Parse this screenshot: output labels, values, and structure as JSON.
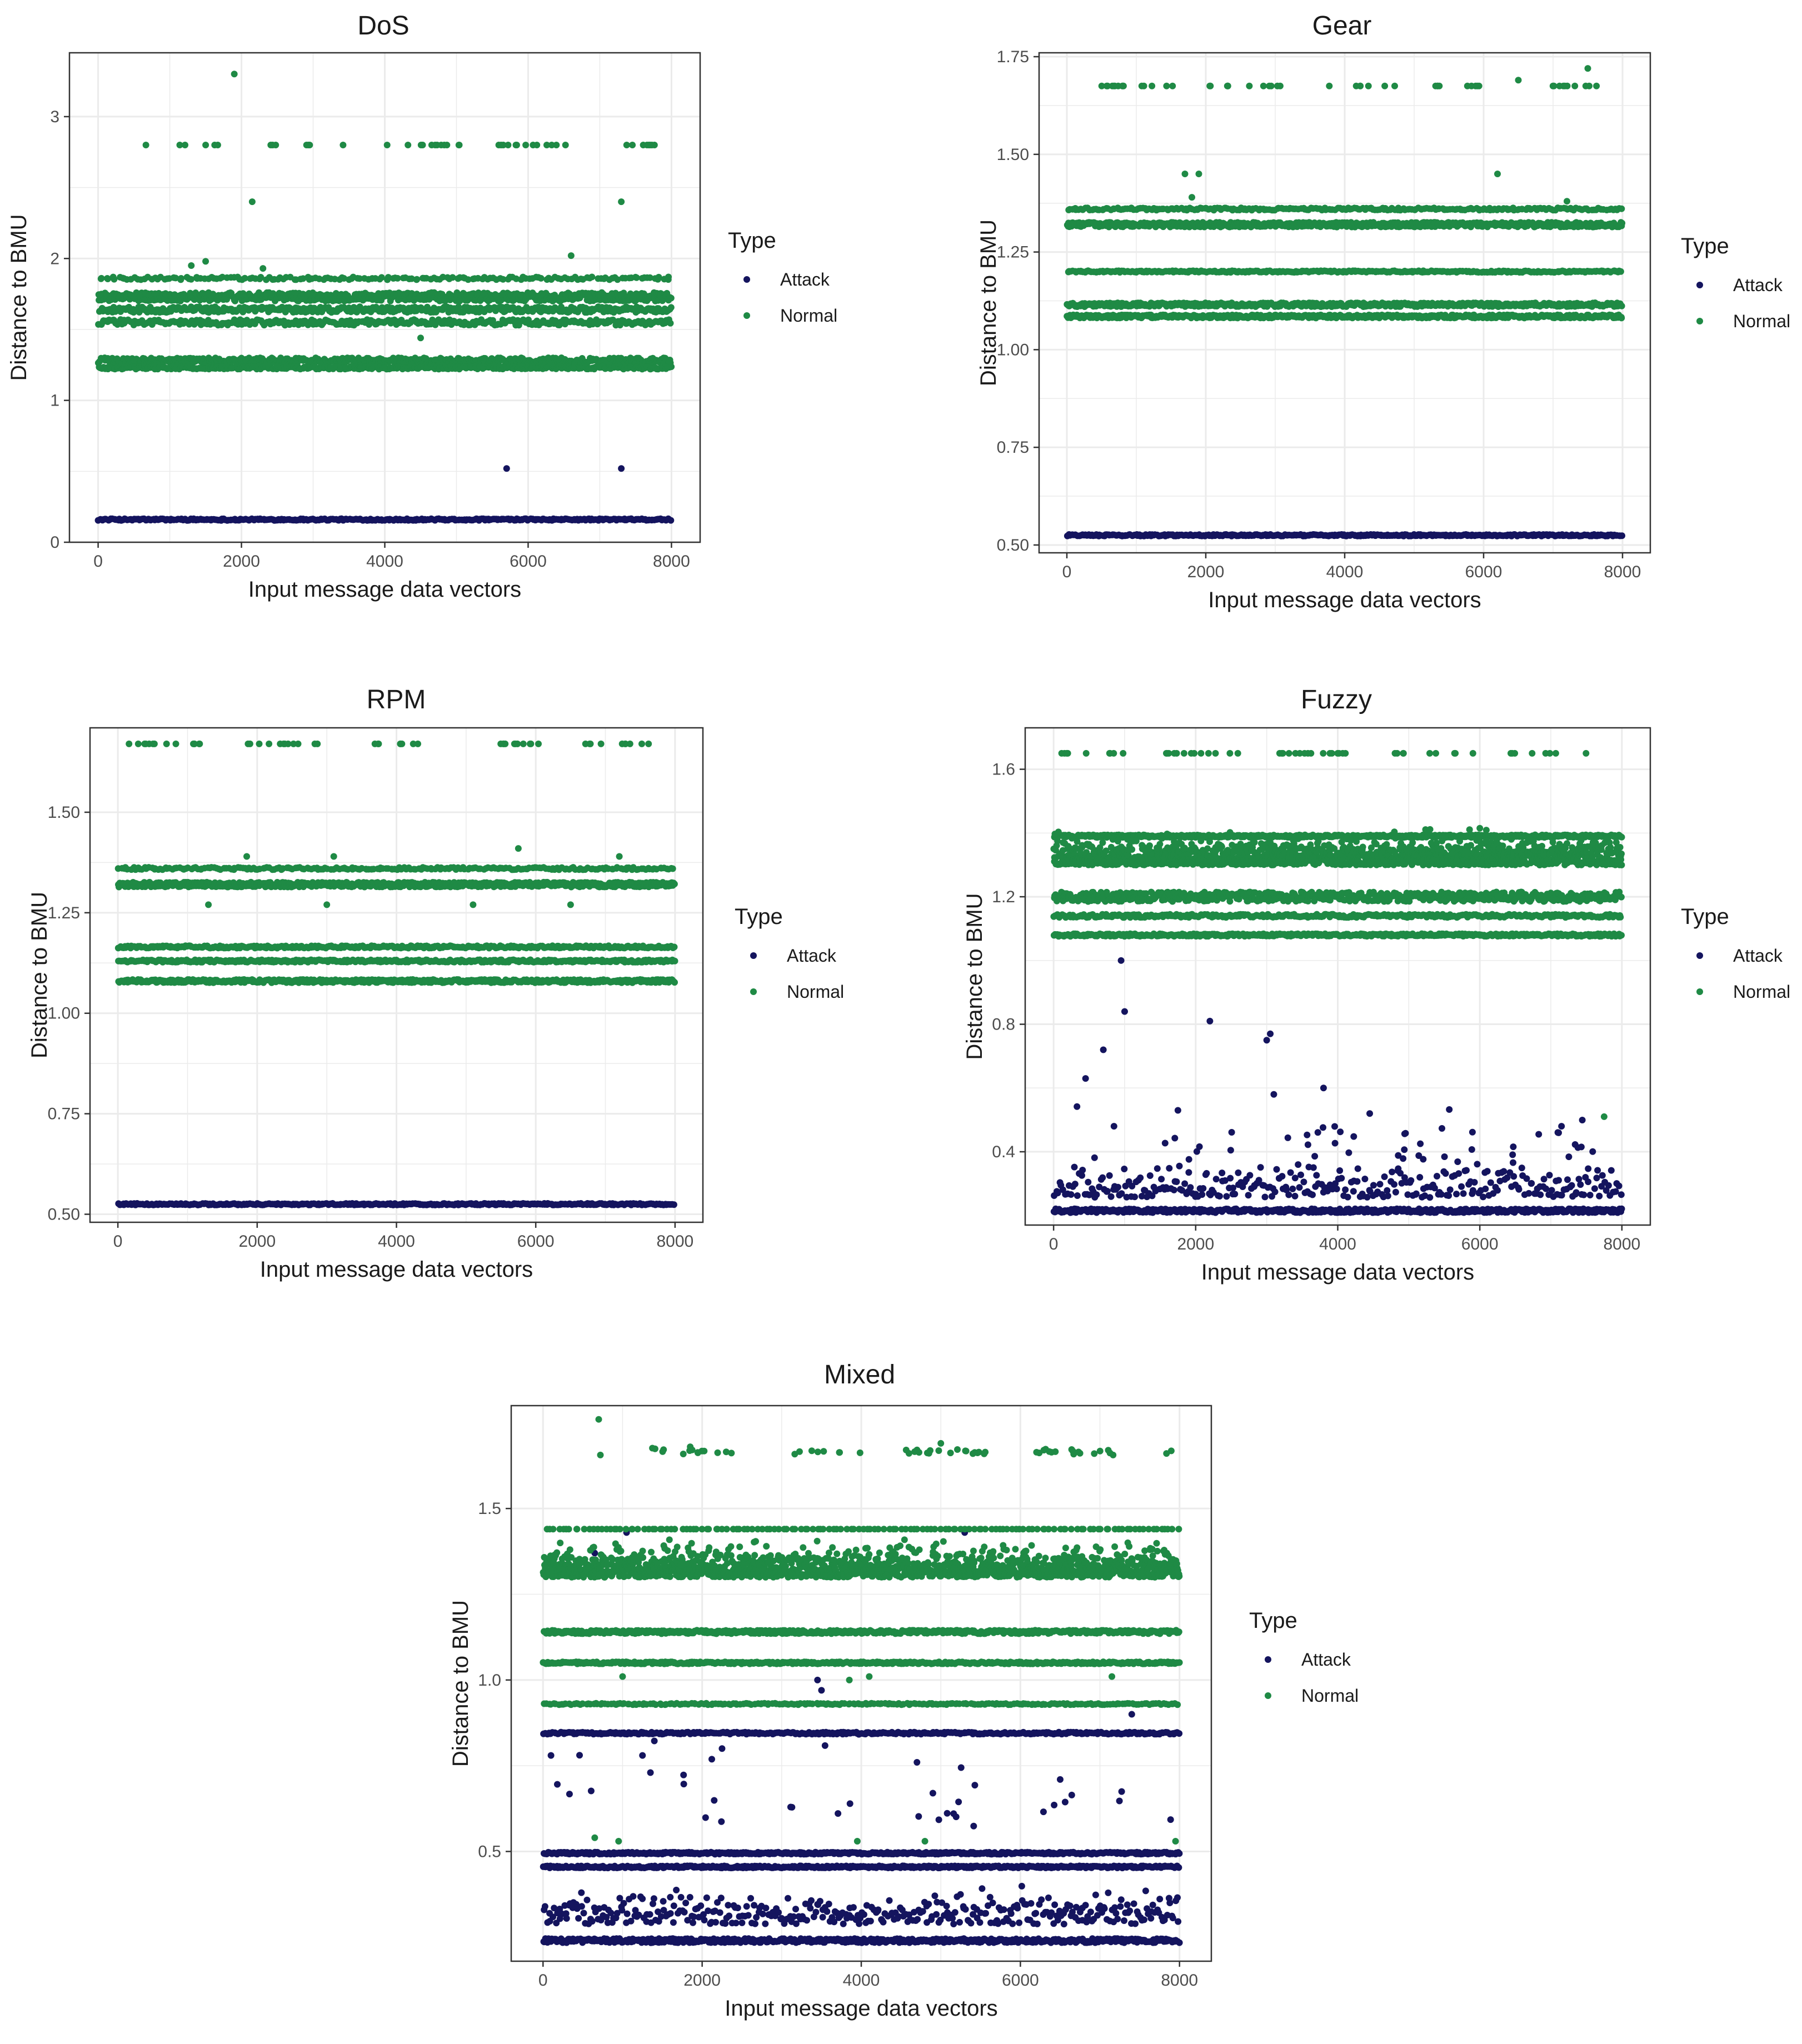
{
  "colors": {
    "attack": "#14145e",
    "normal": "#1f8a45",
    "grid": "#ebebeb",
    "panel_border": "#333333",
    "tick": "#4d4d4d"
  },
  "chart_data": [
    {
      "type": "scatter",
      "name": "dos",
      "title": "DoS",
      "xlabel": "Input message data vectors",
      "ylabel": "Distance to BMU",
      "xlim": [
        -400,
        8400
      ],
      "ylim": [
        0,
        3.45
      ],
      "xticks": [
        0,
        2000,
        4000,
        6000,
        8000
      ],
      "xtick_labels": [
        "0",
        "2000",
        "4000",
        "6000",
        "8000"
      ],
      "yticks": [
        0,
        1,
        2,
        3
      ],
      "ytick_labels": [
        "0",
        "1",
        "2",
        "3"
      ],
      "legend": {
        "title": "Type",
        "entries": [
          "Attack",
          "Normal"
        ]
      },
      "series": [
        {
          "name": "Attack",
          "color_key": "attack",
          "bands": [
            {
              "y": 0.16,
              "jitter": 0.006,
              "count": 380,
              "x_from": 0,
              "x_to": 8000
            }
          ],
          "points": [
            [
              5700,
              0.52
            ],
            [
              7300,
              0.52
            ]
          ]
        },
        {
          "name": "Normal",
          "color_key": "normal",
          "bands": [
            {
              "y": 2.8,
              "jitter": 0.0,
              "count": 75,
              "x_from": 200,
              "x_to": 7800,
              "sparse": true
            },
            {
              "y": 1.86,
              "jitter": 0.01,
              "count": 180,
              "x_from": 0,
              "x_to": 8000
            },
            {
              "y": 1.73,
              "jitter": 0.03,
              "count": 700,
              "x_from": 0,
              "x_to": 8000
            },
            {
              "y": 1.64,
              "jitter": 0.02,
              "count": 420,
              "x_from": 0,
              "x_to": 8000
            },
            {
              "y": 1.55,
              "jitter": 0.02,
              "count": 330,
              "x_from": 0,
              "x_to": 8000
            },
            {
              "y": 1.28,
              "jitter": 0.02,
              "count": 520,
              "x_from": 0,
              "x_to": 8000
            },
            {
              "y": 1.23,
              "jitter": 0.01,
              "count": 380,
              "x_from": 0,
              "x_to": 8000
            }
          ],
          "points": [
            [
              1900,
              3.3
            ],
            [
              2150,
              2.4
            ],
            [
              7300,
              2.4
            ],
            [
              1500,
              1.98
            ],
            [
              6600,
              2.02
            ],
            [
              4500,
              1.44
            ],
            [
              1300,
              1.95
            ],
            [
              2300,
              1.93
            ]
          ]
        }
      ]
    },
    {
      "type": "scatter",
      "name": "gear",
      "title": "Gear",
      "xlabel": "Input message data vectors",
      "ylabel": "Distance to BMU",
      "xlim": [
        -400,
        8400
      ],
      "ylim": [
        0.48,
        1.76
      ],
      "xticks": [
        0,
        2000,
        4000,
        6000,
        8000
      ],
      "xtick_labels": [
        "0",
        "2000",
        "4000",
        "6000",
        "8000"
      ],
      "yticks": [
        0.5,
        0.75,
        1.0,
        1.25,
        1.5,
        1.75
      ],
      "ytick_labels": [
        "0.50",
        "0.75",
        "1.00",
        "1.25",
        "1.50",
        "1.75"
      ],
      "legend": {
        "title": "Type",
        "entries": [
          "Attack",
          "Normal"
        ]
      },
      "series": [
        {
          "name": "Attack",
          "color_key": "attack",
          "bands": [
            {
              "y": 0.525,
              "jitter": 0.002,
              "count": 380,
              "x_from": 0,
              "x_to": 8000
            }
          ],
          "points": []
        },
        {
          "name": "Normal",
          "color_key": "normal",
          "bands": [
            {
              "y": 1.675,
              "jitter": 0.0,
              "count": 80,
              "x_from": 0,
              "x_to": 8000,
              "sparse": true
            },
            {
              "y": 1.36,
              "jitter": 0.003,
              "count": 260,
              "x_from": 0,
              "x_to": 8000
            },
            {
              "y": 1.32,
              "jitter": 0.006,
              "count": 720,
              "x_from": 0,
              "x_to": 8000
            },
            {
              "y": 1.2,
              "jitter": 0.002,
              "count": 320,
              "x_from": 0,
              "x_to": 8000
            },
            {
              "y": 1.115,
              "jitter": 0.005,
              "count": 560,
              "x_from": 0,
              "x_to": 8000
            },
            {
              "y": 1.085,
              "jitter": 0.004,
              "count": 560,
              "x_from": 0,
              "x_to": 8000
            }
          ],
          "points": [
            [
              1700,
              1.45
            ],
            [
              1900,
              1.45
            ],
            [
              1800,
              1.39
            ],
            [
              6200,
              1.45
            ],
            [
              7500,
              1.72
            ],
            [
              6500,
              1.69
            ],
            [
              7200,
              1.38
            ]
          ]
        }
      ]
    },
    {
      "type": "scatter",
      "name": "rpm",
      "title": "RPM",
      "xlabel": "Input message data vectors",
      "ylabel": "Distance to BMU",
      "xlim": [
        -400,
        8400
      ],
      "ylim": [
        0.48,
        1.71
      ],
      "xticks": [
        0,
        2000,
        4000,
        6000,
        8000
      ],
      "xtick_labels": [
        "0",
        "2000",
        "4000",
        "6000",
        "8000"
      ],
      "yticks": [
        0.5,
        0.75,
        1.0,
        1.25,
        1.5
      ],
      "ytick_labels": [
        "0.50",
        "0.75",
        "1.00",
        "1.25",
        "1.50"
      ],
      "legend": {
        "title": "Type",
        "entries": [
          "Attack",
          "Normal"
        ]
      },
      "series": [
        {
          "name": "Attack",
          "color_key": "attack",
          "bands": [
            {
              "y": 0.525,
              "jitter": 0.002,
              "count": 380,
              "x_from": 0,
              "x_to": 8000
            }
          ],
          "points": []
        },
        {
          "name": "Normal",
          "color_key": "normal",
          "bands": [
            {
              "y": 1.67,
              "jitter": 0.0,
              "count": 75,
              "x_from": 0,
              "x_to": 8000,
              "sparse": true
            },
            {
              "y": 1.36,
              "jitter": 0.003,
              "count": 240,
              "x_from": 0,
              "x_to": 8000
            },
            {
              "y": 1.32,
              "jitter": 0.006,
              "count": 760,
              "x_from": 0,
              "x_to": 8000
            },
            {
              "y": 1.165,
              "jitter": 0.003,
              "count": 380,
              "x_from": 0,
              "x_to": 8000
            },
            {
              "y": 1.13,
              "jitter": 0.003,
              "count": 420,
              "x_from": 0,
              "x_to": 8000
            },
            {
              "y": 1.08,
              "jitter": 0.004,
              "count": 560,
              "x_from": 0,
              "x_to": 8000
            }
          ],
          "points": [
            [
              1300,
              1.27
            ],
            [
              3000,
              1.27
            ],
            [
              5100,
              1.27
            ],
            [
              6500,
              1.27
            ],
            [
              5750,
              1.41
            ],
            [
              1850,
              1.39
            ],
            [
              3100,
              1.39
            ],
            [
              7200,
              1.39
            ]
          ]
        }
      ]
    },
    {
      "type": "scatter",
      "name": "fuzzy",
      "title": "Fuzzy",
      "xlabel": "Input message data vectors",
      "ylabel": "Distance to BMU",
      "xlim": [
        -400,
        8400
      ],
      "ylim": [
        0.17,
        1.73
      ],
      "xticks": [
        0,
        2000,
        4000,
        6000,
        8000
      ],
      "xtick_labels": [
        "0",
        "2000",
        "4000",
        "6000",
        "8000"
      ],
      "yticks": [
        0.4,
        0.8,
        1.2,
        1.6
      ],
      "ytick_labels": [
        "0.4",
        "0.8",
        "1.2",
        "1.6"
      ],
      "legend": {
        "title": "Type",
        "entries": [
          "Attack",
          "Normal"
        ]
      },
      "series": [
        {
          "name": "Attack",
          "color_key": "attack",
          "bands": [
            {
              "y": 0.215,
              "jitter": 0.006,
              "count": 560,
              "x_from": 0,
              "x_to": 8000
            },
            {
              "y": 0.27,
              "jitter": 0.045,
              "count": 320,
              "x_from": 0,
              "x_to": 8000
            },
            {
              "y": 0.4,
              "jitter": 0.08,
              "count": 60,
              "x_from": 0,
              "x_to": 8000,
              "sparse": true
            }
          ],
          "points": [
            [
              950,
              1.0
            ],
            [
              1000,
              0.84
            ],
            [
              700,
              0.72
            ],
            [
              450,
              0.63
            ],
            [
              2200,
              0.81
            ],
            [
              3000,
              0.75
            ],
            [
              3050,
              0.77
            ],
            [
              3800,
              0.6
            ],
            [
              3100,
              0.58
            ],
            [
              4450,
              0.52
            ],
            [
              7150,
              0.48
            ],
            [
              1750,
              0.53
            ],
            [
              850,
              0.48
            ]
          ]
        },
        {
          "name": "Normal",
          "color_key": "normal",
          "bands": [
            {
              "y": 1.65,
              "jitter": 0.0,
              "count": 80,
              "x_from": 0,
              "x_to": 8000,
              "sparse": true
            },
            {
              "y": 1.39,
              "jitter": 0.004,
              "count": 520,
              "x_from": 0,
              "x_to": 8000
            },
            {
              "y": 1.31,
              "jitter": 0.035,
              "count": 1500,
              "x_from": 0,
              "x_to": 8000
            },
            {
              "y": 1.2,
              "jitter": 0.015,
              "count": 620,
              "x_from": 0,
              "x_to": 8000
            },
            {
              "y": 1.14,
              "jitter": 0.005,
              "count": 380,
              "x_from": 0,
              "x_to": 8000
            },
            {
              "y": 1.08,
              "jitter": 0.004,
              "count": 520,
              "x_from": 0,
              "x_to": 8000
            }
          ],
          "points": [
            [
              7750,
              0.51
            ]
          ]
        }
      ]
    },
    {
      "type": "scatter",
      "name": "mixed",
      "title": "Mixed",
      "xlabel": "Input message data vectors",
      "ylabel": "Distance to BMU",
      "xlim": [
        -400,
        8400
      ],
      "ylim": [
        0.18,
        1.8
      ],
      "xticks": [
        0,
        2000,
        4000,
        6000,
        8000
      ],
      "xtick_labels": [
        "0",
        "2000",
        "4000",
        "6000",
        "8000"
      ],
      "yticks": [
        0.5,
        1.0,
        1.5
      ],
      "ytick_labels": [
        "0.5",
        "1.0",
        "1.5"
      ],
      "legend": {
        "title": "Type",
        "entries": [
          "Attack",
          "Normal"
        ]
      },
      "series": [
        {
          "name": "Attack",
          "color_key": "attack",
          "bands": [
            {
              "y": 0.845,
              "jitter": 0.003,
              "count": 420,
              "x_from": 0,
              "x_to": 8000
            },
            {
              "y": 0.495,
              "jitter": 0.003,
              "count": 520,
              "x_from": 0,
              "x_to": 8000
            },
            {
              "y": 0.455,
              "jitter": 0.003,
              "count": 520,
              "x_from": 0,
              "x_to": 8000
            },
            {
              "y": 0.24,
              "jitter": 0.006,
              "count": 560,
              "x_from": 0,
              "x_to": 8000
            },
            {
              "y": 0.3,
              "jitter": 0.04,
              "count": 380,
              "x_from": 0,
              "x_to": 8000
            },
            {
              "y": 0.6,
              "jitter": 0.12,
              "count": 45,
              "x_from": 0,
              "x_to": 8000,
              "sparse": true
            }
          ],
          "points": [
            [
              100,
              0.78
            ],
            [
              1250,
              0.78
            ],
            [
              1350,
              0.73
            ],
            [
              2250,
              0.8
            ],
            [
              3500,
              0.97
            ],
            [
              3450,
              1.0
            ],
            [
              4900,
              0.67
            ],
            [
              4700,
              0.76
            ],
            [
              6500,
              0.71
            ],
            [
              1050,
              1.43
            ],
            [
              5300,
              1.43
            ],
            [
              7400,
              0.9
            ],
            [
              650,
              1.37
            ]
          ]
        },
        {
          "name": "Normal",
          "color_key": "normal",
          "bands": [
            {
              "y": 1.665,
              "jitter": 0.004,
              "count": 95,
              "x_from": 300,
              "x_to": 8000,
              "sparse": true
            },
            {
              "y": 1.44,
              "jitter": 0.0,
              "count": 150,
              "x_from": 0,
              "x_to": 8000
            },
            {
              "y": 1.31,
              "jitter": 0.035,
              "count": 1500,
              "x_from": 0,
              "x_to": 8000
            },
            {
              "y": 1.14,
              "jitter": 0.005,
              "count": 600,
              "x_from": 0,
              "x_to": 8000
            },
            {
              "y": 1.05,
              "jitter": 0.003,
              "count": 500,
              "x_from": 0,
              "x_to": 8000
            },
            {
              "y": 0.93,
              "jitter": 0.002,
              "count": 260,
              "x_from": 0,
              "x_to": 8000
            }
          ],
          "points": [
            [
              700,
              1.76
            ],
            [
              1850,
              1.68
            ],
            [
              5000,
              1.69
            ],
            [
              7350,
              1.4
            ],
            [
              1000,
              1.01
            ],
            [
              3850,
              1.0
            ],
            [
              4100,
              1.01
            ],
            [
              7150,
              1.01
            ],
            [
              650,
              0.54
            ],
            [
              950,
              0.53
            ],
            [
              3950,
              0.53
            ],
            [
              4800,
              0.53
            ],
            [
              7950,
              0.53
            ]
          ]
        }
      ]
    }
  ]
}
